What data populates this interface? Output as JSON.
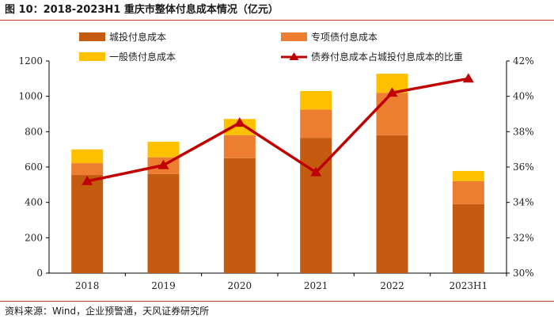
{
  "title": "图 10：2018-2023H1 重庆市整体付息成本情况（亿元）",
  "source": "资料来源：Wind，企业预警通，天风证券研究所",
  "colors": {
    "city_invest": "#c55a11",
    "special_bond": "#ed7d31",
    "general_bond": "#ffc000",
    "ratio_line": "#c00000"
  },
  "chart_data": {
    "type": "bar",
    "stacked": true,
    "categories": [
      "2018",
      "2019",
      "2020",
      "2021",
      "2022",
      "2023H1"
    ],
    "series": [
      {
        "name": "城投付息成本",
        "values": [
          555,
          560,
          650,
          765,
          780,
          390
        ]
      },
      {
        "name": "专项债付息成本",
        "values": [
          67,
          95,
          130,
          160,
          240,
          130
        ]
      },
      {
        "name": "一般债付息成本",
        "values": [
          78,
          88,
          92,
          105,
          108,
          58
        ]
      }
    ],
    "line_series": {
      "name": "债券付息成本占城投付息成本的比重",
      "values": [
        35.2,
        36.1,
        38.5,
        35.7,
        40.2,
        41.0
      ]
    },
    "y_left": {
      "ylim": [
        0,
        1200
      ],
      "ticks": [
        "0",
        "200",
        "400",
        "600",
        "800",
        "1000",
        "1200"
      ]
    },
    "y_right": {
      "ylim": [
        30,
        42
      ],
      "ticks": [
        "30%",
        "32%",
        "34%",
        "36%",
        "38%",
        "40%",
        "42%"
      ]
    },
    "legend": [
      "城投付息成本",
      "专项债付息成本",
      "一般债付息成本",
      "债券付息成本占城投付息成本的比重"
    ]
  }
}
